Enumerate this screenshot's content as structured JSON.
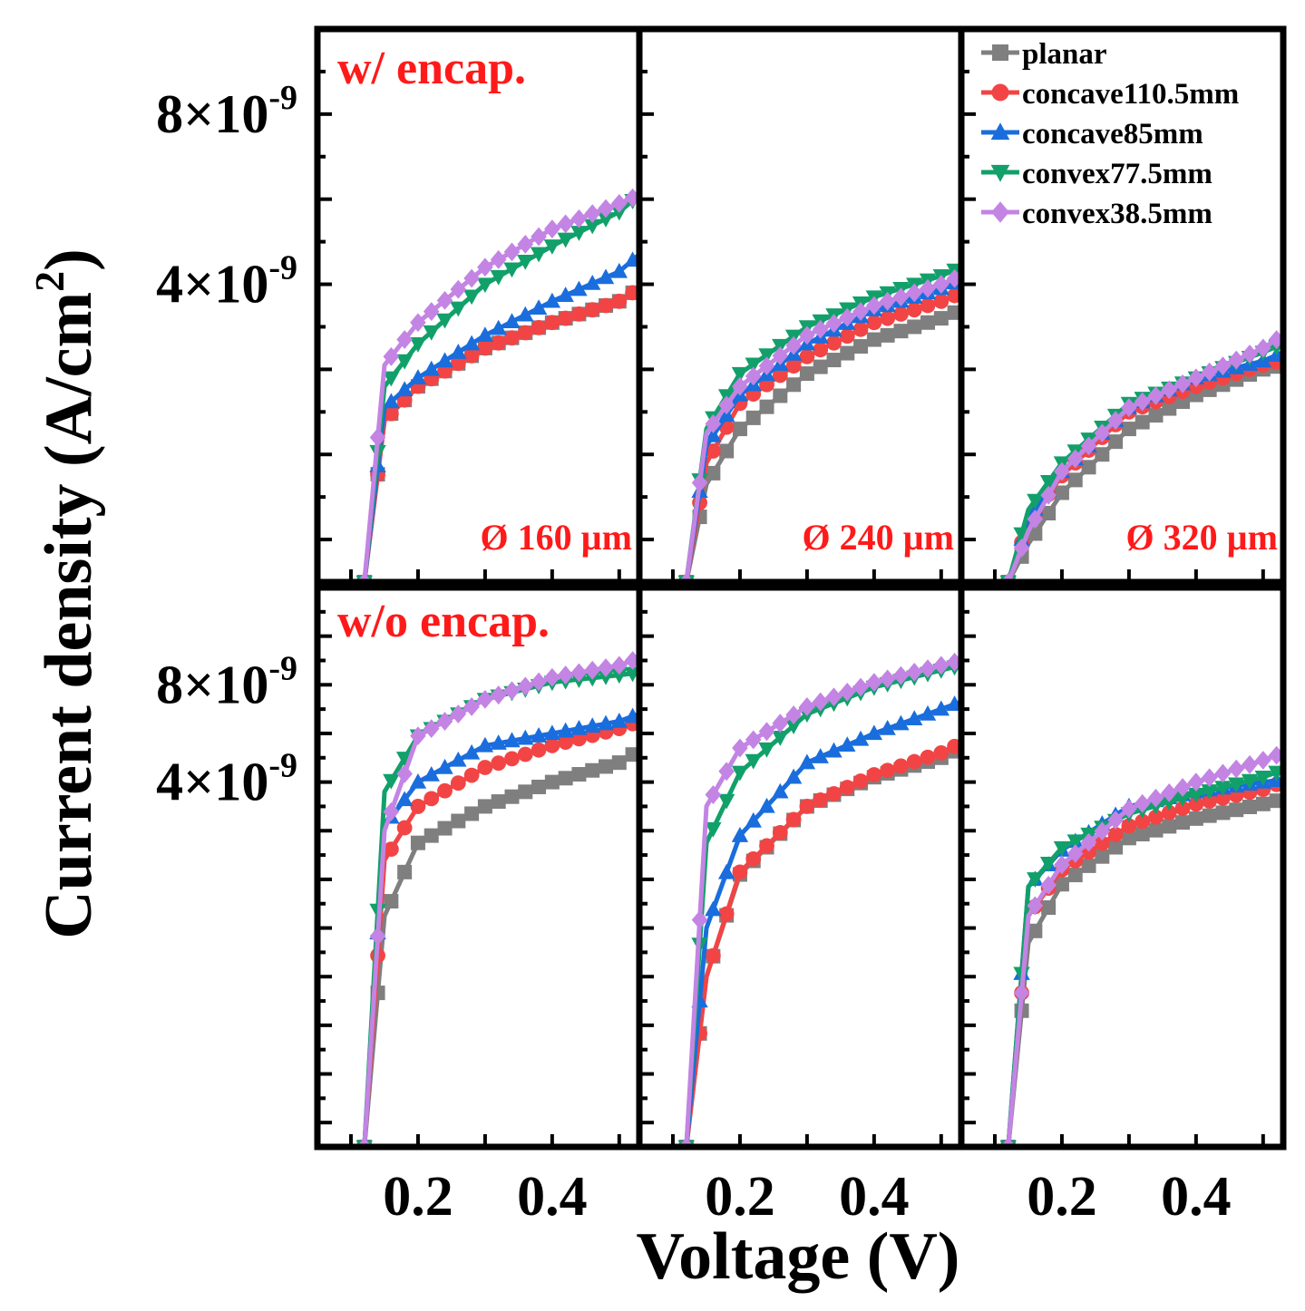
{
  "chart_data": {
    "type": "line",
    "title": "",
    "ylabel": "Current density (A/cm",
    "ylabel_sup": "2",
    "ylabel_close": ")",
    "xlabel": "Voltage (V)",
    "x_ticks": [
      0.2,
      0.4
    ],
    "x_tick_labels": [
      "0.2",
      "0.4"
    ],
    "xlim": [
      0.05,
      0.53
    ],
    "y_tick_labels": [
      {
        "value": 4e-09,
        "mantissa": "4×10",
        "exp": "-9"
      },
      {
        "value": 8e-09,
        "mantissa": "8×10",
        "exp": "-9"
      }
    ],
    "rows": [
      {
        "label": "w/ encap.",
        "ylim": [
          -3e-09,
          1e-08
        ]
      },
      {
        "label": "w/o encap.",
        "ylim": [
          -1.1e-08,
          1.2e-08
        ]
      }
    ],
    "column_labels": [
      "Ø 160 µm",
      "Ø 240 µm",
      "Ø 320 µm"
    ],
    "legend": {
      "placement": "top-right",
      "entries": [
        {
          "name": "planar",
          "color": "#7f7f7f",
          "marker": "square"
        },
        {
          "name": "concave110.5mm",
          "color": "#f24444",
          "marker": "circle"
        },
        {
          "name": "concave85mm",
          "color": "#1a6ddc",
          "marker": "triangle-up"
        },
        {
          "name": "convex77.5mm",
          "color": "#12a06a",
          "marker": "triangle-down"
        },
        {
          "name": "convex38.5mm",
          "color": "#c384e4",
          "marker": "diamond"
        }
      ]
    },
    "panels": [
      {
        "row": 0,
        "col": 0,
        "series": [
          {
            "name": "planar",
            "x": [
              0.12,
              0.15,
              0.2,
              0.3,
              0.4,
              0.5,
              0.53
            ],
            "y": [
              -3e-09,
              8e-10,
              1.6e-09,
              2.5e-09,
              3.1e-09,
              3.6e-09,
              3.9e-09
            ]
          },
          {
            "name": "concave110.5mm",
            "x": [
              0.12,
              0.15,
              0.2,
              0.3,
              0.4,
              0.5,
              0.53
            ],
            "y": [
              -3e-09,
              8e-10,
              1.6e-09,
              2.5e-09,
              3.1e-09,
              3.6e-09,
              3.9e-09
            ]
          },
          {
            "name": "concave85mm",
            "x": [
              0.12,
              0.15,
              0.2,
              0.3,
              0.4,
              0.5,
              0.53
            ],
            "y": [
              -3e-09,
              1.1e-09,
              1.8e-09,
              2.8e-09,
              3.6e-09,
              4.3e-09,
              4.7e-09
            ]
          },
          {
            "name": "convex77.5mm",
            "x": [
              0.12,
              0.15,
              0.2,
              0.3,
              0.4,
              0.5,
              0.53
            ],
            "y": [
              -3e-09,
              1.6e-09,
              2.6e-09,
              4e-09,
              4.9e-09,
              5.7e-09,
              6.1e-09
            ]
          },
          {
            "name": "convex38.5mm",
            "x": [
              0.12,
              0.15,
              0.2,
              0.3,
              0.4,
              0.5,
              0.53
            ],
            "y": [
              -3e-09,
              2.1e-09,
              3.1e-09,
              4.4e-09,
              5.3e-09,
              5.9e-09,
              6.1e-09
            ]
          }
        ]
      },
      {
        "row": 0,
        "col": 1,
        "series": [
          {
            "name": "planar",
            "x": [
              0.12,
              0.15,
              0.2,
              0.3,
              0.4,
              0.5,
              0.53
            ],
            "y": [
              -3e-09,
              -7e-10,
              6e-10,
              1.9e-09,
              2.7e-09,
              3.2e-09,
              3.4e-09
            ]
          },
          {
            "name": "concave110.5mm",
            "x": [
              0.12,
              0.15,
              0.2,
              0.3,
              0.4,
              0.5,
              0.53
            ],
            "y": [
              -3e-09,
              -2e-10,
              1.2e-09,
              2.3e-09,
              3.1e-09,
              3.6e-09,
              3.8e-09
            ]
          },
          {
            "name": "concave85mm",
            "x": [
              0.12,
              0.15,
              0.2,
              0.3,
              0.4,
              0.5,
              0.53
            ],
            "y": [
              -3e-09,
              2e-10,
              1.4e-09,
              2.6e-09,
              3.4e-09,
              3.9e-09,
              4.1e-09
            ]
          },
          {
            "name": "convex77.5mm",
            "x": [
              0.12,
              0.15,
              0.2,
              0.3,
              0.4,
              0.5,
              0.53
            ],
            "y": [
              -3e-09,
              6e-10,
              1.9e-09,
              3e-09,
              3.7e-09,
              4.2e-09,
              4.4e-09
            ]
          },
          {
            "name": "convex38.5mm",
            "x": [
              0.12,
              0.15,
              0.2,
              0.3,
              0.4,
              0.5,
              0.53
            ],
            "y": [
              -3e-09,
              5e-10,
              1.6e-09,
              2.8e-09,
              3.5e-09,
              4e-09,
              4.2e-09
            ]
          }
        ]
      },
      {
        "row": 0,
        "col": 2,
        "series": [
          {
            "name": "planar",
            "x": [
              0.12,
              0.15,
              0.2,
              0.3,
              0.4,
              0.5,
              0.53
            ],
            "y": [
              -3e-09,
              -2.1e-09,
              -9e-10,
              6e-10,
              1.4e-09,
              2e-09,
              2.1e-09
            ]
          },
          {
            "name": "concave110.5mm",
            "x": [
              0.12,
              0.15,
              0.2,
              0.3,
              0.4,
              0.5,
              0.53
            ],
            "y": [
              -3e-09,
              -1.6e-09,
              -5e-10,
              1e-09,
              1.6e-09,
              2.1e-09,
              2.2e-09
            ]
          },
          {
            "name": "concave85mm",
            "x": [
              0.12,
              0.15,
              0.2,
              0.3,
              0.4,
              0.5,
              0.53
            ],
            "y": [
              -3e-09,
              -1.5e-09,
              -4e-10,
              1.1e-09,
              1.8e-09,
              2.2e-09,
              2.4e-09
            ]
          },
          {
            "name": "convex77.5mm",
            "x": [
              0.12,
              0.15,
              0.2,
              0.3,
              0.4,
              0.5,
              0.53
            ],
            "y": [
              -3e-09,
              -1.3e-09,
              -2e-10,
              1.2e-09,
              1.8e-09,
              2.4e-09,
              2.6e-09
            ]
          },
          {
            "name": "convex38.5mm",
            "x": [
              0.12,
              0.15,
              0.2,
              0.3,
              0.4,
              0.5,
              0.53
            ],
            "y": [
              -3e-09,
              -1.8e-09,
              -4e-10,
              1.1e-09,
              1.8e-09,
              2.5e-09,
              2.8e-09
            ]
          }
        ]
      },
      {
        "row": 1,
        "col": 0,
        "series": [
          {
            "name": "planar",
            "x": [
              0.12,
              0.15,
              0.2,
              0.3,
              0.4,
              0.5,
              0.53
            ],
            "y": [
              -1.1e-08,
              -1.5e-09,
              1.5e-09,
              3e-09,
              4e-09,
              4.8e-09,
              5.3e-09
            ]
          },
          {
            "name": "concave110.5mm",
            "x": [
              0.12,
              0.15,
              0.2,
              0.3,
              0.4,
              0.5,
              0.53
            ],
            "y": [
              -1.1e-08,
              8e-10,
              3e-09,
              4.6e-09,
              5.5e-09,
              6.2e-09,
              6.5e-09
            ]
          },
          {
            "name": "concave85mm",
            "x": [
              0.12,
              0.15,
              0.2,
              0.3,
              0.4,
              0.5,
              0.53
            ],
            "y": [
              -1.1e-08,
              2.2e-09,
              4e-09,
              5.5e-09,
              6e-09,
              6.5e-09,
              6.8e-09
            ]
          },
          {
            "name": "convex77.5mm",
            "x": [
              0.12,
              0.15,
              0.2,
              0.3,
              0.4,
              0.5,
              0.53
            ],
            "y": [
              -1.1e-08,
              3.6e-09,
              5.9e-09,
              7.4e-09,
              8.1e-09,
              8.4e-09,
              8.5e-09
            ]
          },
          {
            "name": "convex38.5mm",
            "x": [
              0.12,
              0.15,
              0.2,
              0.3,
              0.4,
              0.5,
              0.53
            ],
            "y": [
              -1.1e-08,
              2e-09,
              5.9e-09,
              7.4e-09,
              8.3e-09,
              8.8e-09,
              9.1e-09
            ]
          }
        ]
      },
      {
        "row": 1,
        "col": 1,
        "series": [
          {
            "name": "planar",
            "x": [
              0.12,
              0.15,
              0.2,
              0.3,
              0.4,
              0.5,
              0.53
            ],
            "y": [
              -1.1e-08,
              -4e-09,
              2e-10,
              3e-09,
              4.2e-09,
              5e-09,
              5.4e-09
            ]
          },
          {
            "name": "concave110.5mm",
            "x": [
              0.12,
              0.15,
              0.2,
              0.3,
              0.4,
              0.5,
              0.53
            ],
            "y": [
              -1.1e-08,
              -4e-09,
              3e-10,
              3e-09,
              4.3e-09,
              5.2e-09,
              5.6e-09
            ]
          },
          {
            "name": "concave85mm",
            "x": [
              0.12,
              0.15,
              0.2,
              0.3,
              0.4,
              0.5,
              0.53
            ],
            "y": [
              -1.1e-08,
              -2e-09,
              1.8e-09,
              4.8e-09,
              6e-09,
              7e-09,
              7.3e-09
            ]
          },
          {
            "name": "convex77.5mm",
            "x": [
              0.12,
              0.15,
              0.2,
              0.3,
              0.4,
              0.5,
              0.53
            ],
            "y": [
              -1.1e-08,
              1.5e-09,
              4.4e-09,
              6.8e-09,
              7.9e-09,
              8.6e-09,
              8.8e-09
            ]
          },
          {
            "name": "convex38.5mm",
            "x": [
              0.12,
              0.15,
              0.2,
              0.3,
              0.4,
              0.5,
              0.53
            ],
            "y": [
              -1.1e-08,
              3e-09,
              5.4e-09,
              7.1e-09,
              8.1e-09,
              8.8e-09,
              9e-09
            ]
          }
        ]
      },
      {
        "row": 1,
        "col": 2,
        "series": [
          {
            "name": "planar",
            "x": [
              0.12,
              0.15,
              0.2,
              0.3,
              0.4,
              0.5,
              0.53
            ],
            "y": [
              -1.1e-08,
              -2.6e-09,
              -2e-10,
              1.7e-09,
              2.5e-09,
              3.1e-09,
              3.3e-09
            ]
          },
          {
            "name": "concave110.5mm",
            "x": [
              0.12,
              0.15,
              0.2,
              0.3,
              0.4,
              0.5,
              0.53
            ],
            "y": [
              -1.1e-08,
              -1.5e-09,
              4e-10,
              2.2e-09,
              3.1e-09,
              3.7e-09,
              4e-09
            ]
          },
          {
            "name": "concave85mm",
            "x": [
              0.12,
              0.15,
              0.2,
              0.3,
              0.4,
              0.5,
              0.53
            ],
            "y": [
              -1.1e-08,
              -3e-10,
              1.2e-09,
              3e-09,
              3.6e-09,
              4e-09,
              4.1e-09
            ]
          },
          {
            "name": "convex77.5mm",
            "x": [
              0.12,
              0.15,
              0.2,
              0.3,
              0.4,
              0.5,
              0.53
            ],
            "y": [
              -1.1e-08,
              -3e-10,
              1.3e-09,
              2.7e-09,
              3.5e-09,
              4.2e-09,
              4.5e-09
            ]
          },
          {
            "name": "convex38.5mm",
            "x": [
              0.12,
              0.15,
              0.2,
              0.3,
              0.4,
              0.5,
              0.53
            ],
            "y": [
              -1.1e-08,
              -1.5e-09,
              6e-10,
              2.9e-09,
              4e-09,
              4.9e-09,
              5.2e-09
            ]
          }
        ]
      }
    ]
  }
}
